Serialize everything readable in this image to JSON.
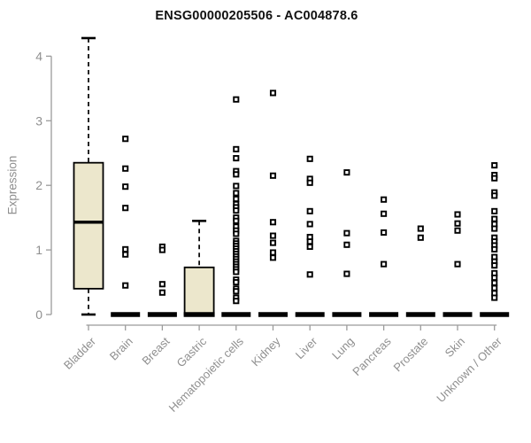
{
  "title": "ENSG00000205506 - AC004878.6",
  "chart_data": {
    "type": "boxplot",
    "title": "ENSG00000205506 - AC004878.6",
    "xlabel": "",
    "ylabel": "Expression",
    "ylim": [
      0,
      4.3
    ],
    "yticks": [
      0,
      1,
      2,
      3,
      4
    ],
    "grid": false,
    "legend": "none",
    "colors": {
      "box_fill": "#ECE7CC",
      "box_stroke": "#000000",
      "axis": "#9b9b9b",
      "axis_text": "#8f8f8f",
      "title_text": "#111111",
      "background": "#ffffff"
    },
    "categories": [
      "Bladder",
      "Brain",
      "Breast",
      "Gastric",
      "Hematopoietic cells",
      "Kidney",
      "Liver",
      "Lung",
      "Pancreas",
      "Prostate",
      "Skin",
      "Unknown / Other"
    ],
    "series": [
      {
        "category": "Bladder",
        "q1": 0.4,
        "median": 1.43,
        "q3": 2.35,
        "whisker_low": 0.0,
        "whisker_high": 4.28,
        "outliers": []
      },
      {
        "category": "Brain",
        "q1": 0,
        "median": 0,
        "q3": 0,
        "whisker_low": 0,
        "whisker_high": 0,
        "outliers": [
          2.72,
          2.26,
          1.98,
          1.65,
          1.01,
          0.93,
          0.45
        ]
      },
      {
        "category": "Breast",
        "q1": 0,
        "median": 0,
        "q3": 0,
        "whisker_low": 0,
        "whisker_high": 0,
        "outliers": [
          1.05,
          1.0,
          0.47,
          0.34
        ]
      },
      {
        "category": "Gastric",
        "q1": 0.0,
        "median": 0.0,
        "q3": 0.73,
        "whisker_low": 0.0,
        "whisker_high": 1.45,
        "outliers": []
      },
      {
        "category": "Hematopoietic cells",
        "q1": 0,
        "median": 0,
        "q3": 0,
        "whisker_low": 0,
        "whisker_high": 0,
        "outliers": [
          3.33,
          2.56,
          2.42,
          2.22,
          2.17,
          1.99,
          1.88,
          1.79,
          1.71,
          1.66,
          1.61,
          1.5,
          1.45,
          1.36,
          1.3,
          1.25,
          1.14,
          1.1,
          1.06,
          1.02,
          0.98,
          0.94,
          0.9,
          0.86,
          0.82,
          0.78,
          0.74,
          0.7,
          0.66,
          0.54,
          0.5,
          0.4,
          0.36,
          0.26,
          0.21
        ]
      },
      {
        "category": "Kidney",
        "q1": 0,
        "median": 0,
        "q3": 0,
        "whisker_low": 0,
        "whisker_high": 0,
        "outliers": [
          3.43,
          2.15,
          1.43,
          1.22,
          1.11,
          0.96,
          0.88
        ]
      },
      {
        "category": "Liver",
        "q1": 0,
        "median": 0,
        "q3": 0,
        "whisker_low": 0,
        "whisker_high": 0,
        "outliers": [
          2.41,
          2.1,
          2.04,
          1.6,
          1.4,
          1.2,
          1.13,
          1.05,
          0.62
        ]
      },
      {
        "category": "Lung",
        "q1": 0,
        "median": 0,
        "q3": 0,
        "whisker_low": 0,
        "whisker_high": 0,
        "outliers": [
          2.2,
          1.26,
          1.08,
          0.63
        ]
      },
      {
        "category": "Pancreas",
        "q1": 0,
        "median": 0,
        "q3": 0,
        "whisker_low": 0,
        "whisker_high": 0,
        "outliers": [
          1.78,
          1.56,
          1.27,
          0.78
        ]
      },
      {
        "category": "Prostate",
        "q1": 0,
        "median": 0,
        "q3": 0,
        "whisker_low": 0,
        "whisker_high": 0,
        "outliers": [
          1.33,
          1.19
        ]
      },
      {
        "category": "Skin",
        "q1": 0,
        "median": 0,
        "q3": 0,
        "whisker_low": 0,
        "whisker_high": 0,
        "outliers": [
          1.55,
          1.41,
          1.3,
          0.78
        ]
      },
      {
        "category": "Unknown / Other",
        "q1": 0,
        "median": 0,
        "q3": 0,
        "whisker_low": 0,
        "whisker_high": 0,
        "outliers": [
          2.31,
          2.16,
          2.11,
          1.89,
          1.84,
          1.6,
          1.48,
          1.4,
          1.33,
          1.19,
          1.13,
          1.07,
          1.01,
          0.89,
          0.82,
          0.76,
          0.64,
          0.57,
          0.49,
          0.41,
          0.33,
          0.26
        ]
      }
    ]
  }
}
